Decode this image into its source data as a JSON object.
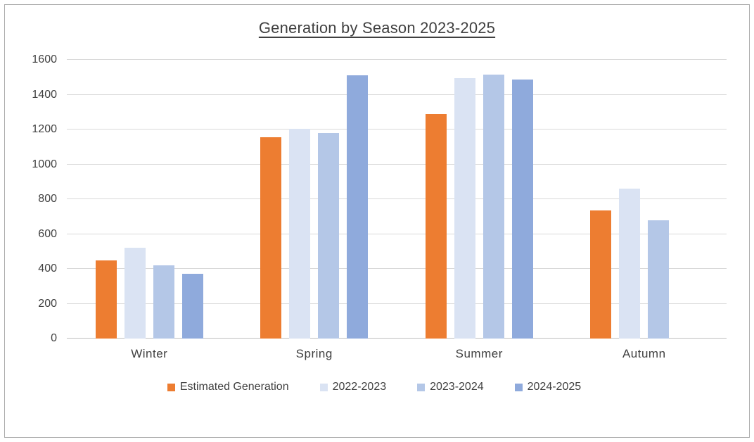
{
  "chart_data": {
    "type": "bar",
    "title": "Generation by Season 2023-2025",
    "categories": [
      "Winter",
      "Spring",
      "Summer",
      "Autumn"
    ],
    "series": [
      {
        "name": "Estimated Generation",
        "color": "#ed7d31",
        "values": [
          450,
          1155,
          1290,
          735
        ]
      },
      {
        "name": "2022-2023",
        "color": "#dae3f3",
        "values": [
          520,
          1205,
          1495,
          860
        ]
      },
      {
        "name": "2023-2024",
        "color": "#b4c7e7",
        "values": [
          420,
          1180,
          1515,
          680
        ]
      },
      {
        "name": "2024-2025",
        "color": "#8faadc",
        "values": [
          370,
          1510,
          1485,
          null
        ]
      }
    ],
    "ylim": [
      0,
      1600
    ],
    "yticks": [
      0,
      200,
      400,
      600,
      800,
      1000,
      1200,
      1400,
      1600
    ],
    "grid": true,
    "legend_position": "bottom"
  },
  "colors": {
    "text": "#404040",
    "gridline": "#d9d9d9",
    "axis_line": "#bfbfbf",
    "frame_border": "#ababab",
    "background": "#ffffff"
  }
}
